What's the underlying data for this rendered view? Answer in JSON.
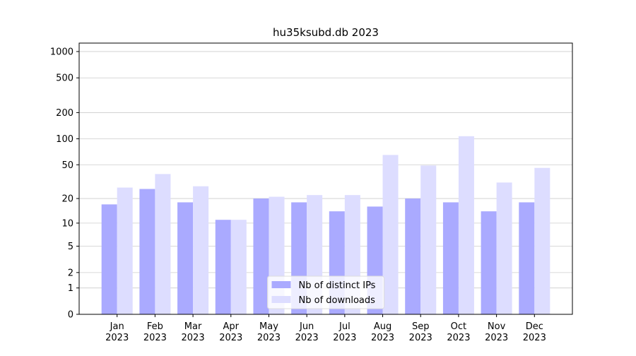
{
  "chart_data": {
    "type": "bar",
    "title": "hu35ksubd.db 2023",
    "categories": [
      "Jan 2023",
      "Feb 2023",
      "Mar 2023",
      "Apr 2023",
      "May 2023",
      "Jun 2023",
      "Jul 2023",
      "Aug 2023",
      "Sep 2023",
      "Oct 2023",
      "Nov 2023",
      "Dec 2023"
    ],
    "series": [
      {
        "name": "Nb of distinct IPs",
        "color": "#aaaaff",
        "values": [
          17,
          26,
          18,
          11,
          20,
          18,
          14,
          16,
          20,
          18,
          14,
          18
        ]
      },
      {
        "name": "Nb of downloads",
        "color": "#ddddff",
        "values": [
          27,
          39,
          28,
          11,
          21,
          22,
          22,
          65,
          49,
          107,
          31,
          46
        ]
      }
    ],
    "yscale": "log1p",
    "ylim": [
      0,
      1249
    ],
    "yticks": [
      0,
      1,
      2,
      5,
      10,
      20,
      50,
      100,
      200,
      500,
      1000
    ],
    "grid": true,
    "legend": "lower center"
  }
}
